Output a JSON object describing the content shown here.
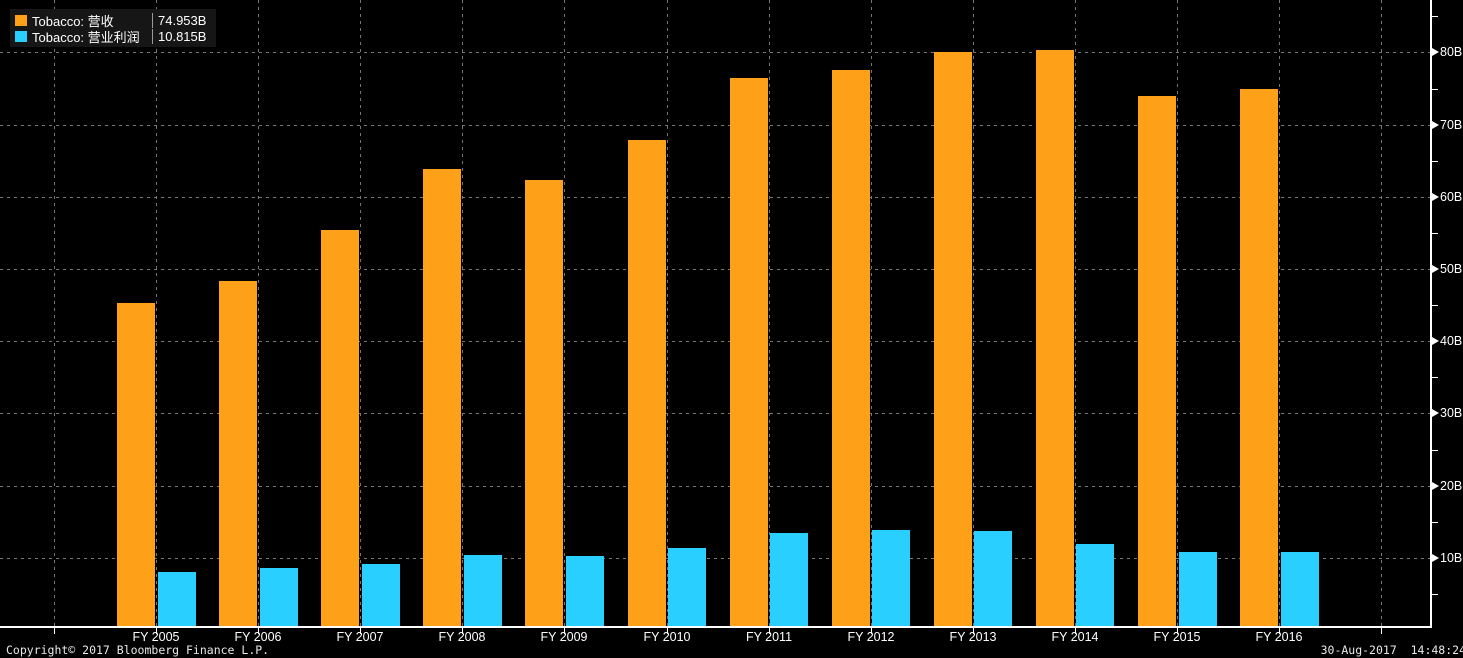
{
  "legend": {
    "series": [
      {
        "label": "Tobacco: 营收",
        "value": "74.953B",
        "color": "#FFA019"
      },
      {
        "label": "Tobacco: 营业利润",
        "value": "10.815B",
        "color": "#29CFFF"
      }
    ]
  },
  "footer": {
    "copyright": "Copyright© 2017 Bloomberg Finance L.P.",
    "timestamp": "30-Aug-2017  14:48:24"
  },
  "chart_data": {
    "type": "bar",
    "title": "",
    "categories": [
      "FY 2005",
      "FY 2006",
      "FY 2007",
      "FY 2008",
      "FY 2009",
      "FY 2010",
      "FY 2011",
      "FY 2012",
      "FY 2013",
      "FY 2014",
      "FY 2015",
      "FY 2016"
    ],
    "series": [
      {
        "name": "Tobacco: 营收",
        "color": "#FFA019",
        "values": [
          45.3,
          48.4,
          55.4,
          63.8,
          62.3,
          67.8,
          76.5,
          77.5,
          80.0,
          80.3,
          74.0,
          74.953
        ]
      },
      {
        "name": "Tobacco: 营业利润",
        "color": "#29CFFF",
        "values": [
          8.0,
          8.6,
          9.1,
          10.4,
          10.3,
          11.3,
          13.4,
          13.9,
          13.7,
          11.9,
          10.8,
          10.815
        ]
      }
    ],
    "xlabel": "",
    "ylabel": "",
    "y_unit": "B",
    "y_ticks": [
      10,
      20,
      30,
      40,
      50,
      60,
      70,
      80
    ],
    "y_tick_labels": [
      "10B",
      "20B",
      "30B",
      "40B",
      "50B",
      "60B",
      "70B",
      "80B"
    ],
    "y_minor_ticks": [
      5,
      15,
      25,
      35,
      45,
      55,
      65,
      75,
      85
    ],
    "ylim": [
      0,
      87
    ],
    "grid": true,
    "legend_position": "top-left",
    "axis_side": "right",
    "background": "#000000",
    "grid_color": "#767676"
  }
}
